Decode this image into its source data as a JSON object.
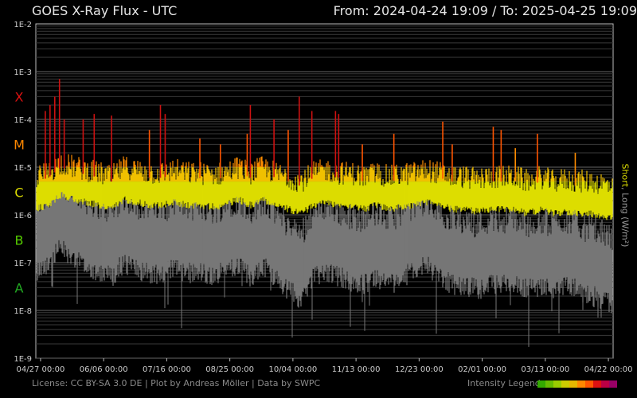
{
  "header": {
    "title": "GOES X-Ray Flux - UTC",
    "range": "From: 2024-04-24 19:09  /  To: 2025-04-25 19:09"
  },
  "footer": {
    "license": "License: CC BY-SA 3.0 DE | Plot by Andreas Möller | Data by SWPC",
    "legend_label": "Intensity Legend",
    "legend_colors": [
      "#33aa00",
      "#66bb00",
      "#99cc00",
      "#cccc00",
      "#e6b800",
      "#ff8800",
      "#ff5500",
      "#dd1111",
      "#bb0044",
      "#990066"
    ]
  },
  "chart_data": {
    "type": "line",
    "title": "GOES X-Ray Flux - UTC",
    "ylabel_short": "Short",
    "ylabel_sep": ", ",
    "ylabel_long": "Long (W/m²)",
    "yscale": "log",
    "ylim": [
      1e-09,
      0.01
    ],
    "y_ticks": [
      "1E-9",
      "1E-8",
      "1E-7",
      "1E-6",
      "1E-5",
      "1E-4",
      "1E-3",
      "1E-2"
    ],
    "flare_classes": [
      {
        "label": "A",
        "value": 3e-08,
        "color": "#22aa22"
      },
      {
        "label": "B",
        "value": 3e-07,
        "color": "#55cc00"
      },
      {
        "label": "C",
        "value": 3e-06,
        "color": "#dddd00"
      },
      {
        "label": "M",
        "value": 3e-05,
        "color": "#ff8800"
      },
      {
        "label": "X",
        "value": 0.0003,
        "color": "#dd1111"
      }
    ],
    "x_ticks": [
      "04/27 00:00",
      "06/06 00:00",
      "07/16 00:00",
      "08/25 00:00",
      "10/04 00:00",
      "11/13 00:00",
      "12/23 00:00",
      "02/01 00:00",
      "03/13 00:00",
      "04/22 00:00"
    ],
    "x_tick_days": [
      3,
      43,
      83,
      123,
      163,
      203,
      243,
      283,
      323,
      363
    ],
    "x_range_days": [
      0,
      366
    ],
    "series": [
      {
        "name": "Long",
        "color": "#dddd00",
        "days": [
          0,
          8,
          16,
          24,
          32,
          40,
          48,
          56,
          64,
          72,
          80,
          88,
          96,
          104,
          112,
          120,
          128,
          136,
          144,
          152,
          160,
          168,
          176,
          184,
          192,
          200,
          208,
          216,
          224,
          232,
          240,
          248,
          256,
          264,
          272,
          280,
          288,
          296,
          304,
          312,
          320,
          328,
          336,
          344,
          352,
          360,
          366
        ],
        "baseline": [
          2.5e-06,
          3e-06,
          5e-06,
          4e-06,
          3.5e-06,
          3e-06,
          2.5e-06,
          4e-06,
          3.5e-06,
          3e-06,
          3e-06,
          3.5e-06,
          3e-06,
          3e-06,
          2.8e-06,
          3e-06,
          4e-06,
          3e-06,
          4e-06,
          3e-06,
          2.5e-06,
          2e-06,
          3e-06,
          3.5e-06,
          3e-06,
          3e-06,
          2.5e-06,
          3e-06,
          2.5e-06,
          2.8e-06,
          3e-06,
          3.5e-06,
          3e-06,
          2.5e-06,
          2.5e-06,
          2.2e-06,
          2.5e-06,
          2.5e-06,
          2.5e-06,
          2e-06,
          2.5e-06,
          2e-06,
          2.2e-06,
          2e-06,
          2e-06,
          1.8e-06,
          1.5e-06
        ],
        "peaks": [
          {
            "day": 6,
            "value": 0.00015
          },
          {
            "day": 9,
            "value": 0.0002
          },
          {
            "day": 12,
            "value": 0.0003
          },
          {
            "day": 15,
            "value": 0.0007
          },
          {
            "day": 18,
            "value": 0.0001
          },
          {
            "day": 30,
            "value": 0.0001
          },
          {
            "day": 37,
            "value": 0.00013
          },
          {
            "day": 48,
            "value": 0.00012
          },
          {
            "day": 72,
            "value": 6e-05
          },
          {
            "day": 79,
            "value": 0.0002
          },
          {
            "day": 82,
            "value": 0.00013
          },
          {
            "day": 104,
            "value": 4e-05
          },
          {
            "day": 117,
            "value": 3e-05
          },
          {
            "day": 134,
            "value": 5e-05
          },
          {
            "day": 136,
            "value": 0.0002
          },
          {
            "day": 151,
            "value": 0.0001
          },
          {
            "day": 160,
            "value": 6e-05
          },
          {
            "day": 167,
            "value": 0.0003
          },
          {
            "day": 175,
            "value": 0.00015
          },
          {
            "day": 190,
            "value": 0.00015
          },
          {
            "day": 192,
            "value": 0.00013
          },
          {
            "day": 207,
            "value": 3e-05
          },
          {
            "day": 227,
            "value": 5e-05
          },
          {
            "day": 258,
            "value": 9e-05
          },
          {
            "day": 264,
            "value": 3e-05
          },
          {
            "day": 290,
            "value": 7e-05
          },
          {
            "day": 295,
            "value": 6e-05
          },
          {
            "day": 304,
            "value": 2.5e-05
          },
          {
            "day": 318,
            "value": 5e-05
          },
          {
            "day": 342,
            "value": 2e-05
          }
        ]
      },
      {
        "name": "Short",
        "color": "#777777",
        "days": [
          0,
          8,
          16,
          24,
          32,
          40,
          48,
          56,
          64,
          72,
          80,
          88,
          96,
          104,
          112,
          120,
          128,
          136,
          144,
          152,
          160,
          168,
          176,
          184,
          192,
          200,
          208,
          216,
          224,
          232,
          240,
          248,
          256,
          264,
          272,
          280,
          288,
          296,
          304,
          312,
          320,
          328,
          336,
          344,
          352,
          360,
          366
        ],
        "baseline": [
          2e-07,
          3e-07,
          6e-07,
          4e-07,
          2.5e-07,
          2e-07,
          1.5e-07,
          3e-07,
          2e-07,
          1.8e-07,
          1.5e-07,
          2.5e-07,
          1.8e-07,
          2e-07,
          1.5e-07,
          2e-07,
          2.5e-07,
          1.5e-07,
          2.5e-07,
          1.5e-07,
          8e-08,
          5e-08,
          1.5e-07,
          2e-07,
          1.5e-07,
          1.2e-07,
          1e-07,
          1.5e-07,
          1e-07,
          1.5e-07,
          2e-07,
          2.5e-07,
          1.5e-07,
          1e-07,
          1e-07,
          8e-08,
          1e-07,
          1e-07,
          1e-07,
          8e-08,
          1e-07,
          8e-08,
          1e-07,
          8e-08,
          6e-08,
          5e-08,
          4e-08
        ]
      }
    ]
  }
}
